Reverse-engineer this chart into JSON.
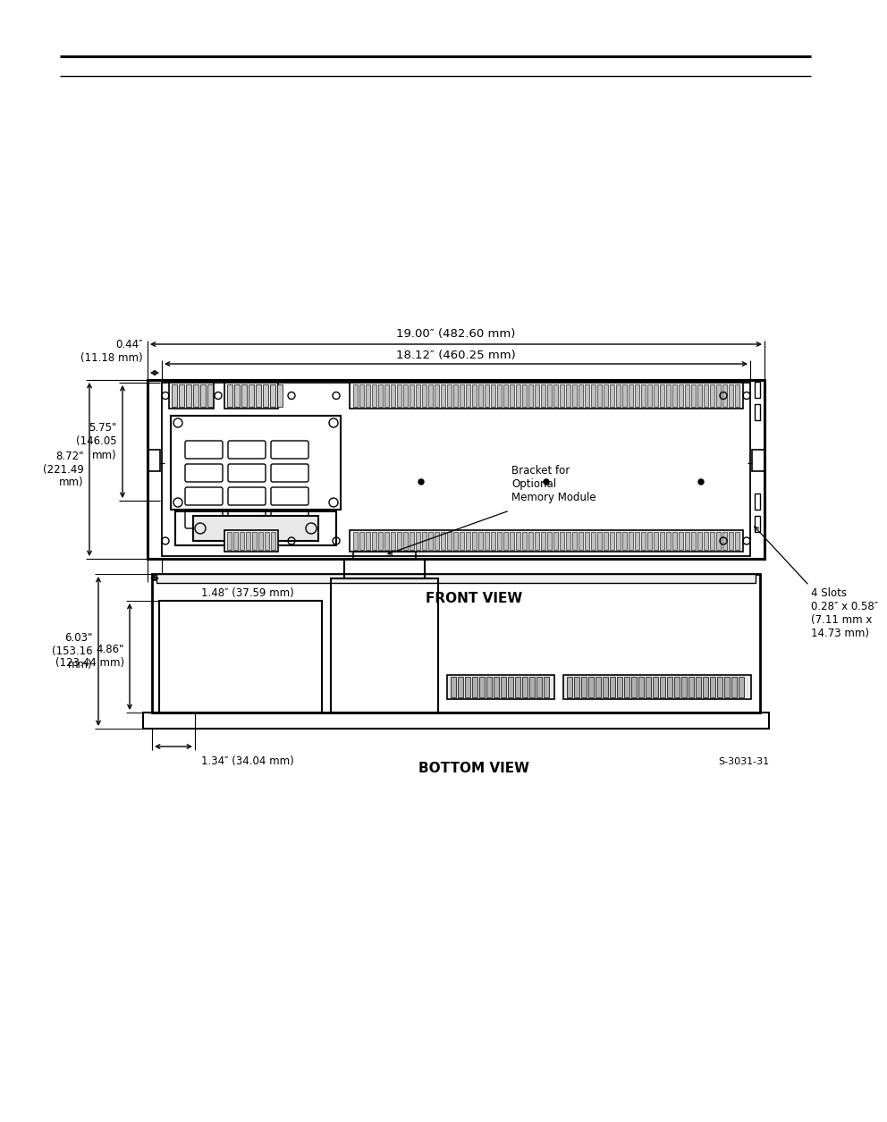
{
  "bg_color": "#ffffff",
  "line_color": "#000000",
  "front_view_label": "FRONT VIEW",
  "bottom_view_label": "BOTTOM VIEW",
  "dim_19in": "19.00″ (482.60 mm)",
  "dim_18in": "18.12″ (460.25 mm)",
  "dim_044in": "0.44″\n(11.18 mm)",
  "dim_575in": "5.75\"\n(146.05\nmm)",
  "dim_872in": "8.72\"\n(221.49\nmm)",
  "dim_148in": "1.48″ (37.59 mm)",
  "dim_4slots": "4 Slots\n0.28″ x 0.58″\n(7.11 mm x\n14.73 mm)",
  "dim_486in": "4.86\"\n(123.44 mm)",
  "dim_603in": "6.03\"\n(153.16\nmm)",
  "dim_134in": "1.34″ (34.04 mm)",
  "bracket_label": "Bracket for\nOptional\nMemory Module",
  "figure_code": "S-3031-31"
}
